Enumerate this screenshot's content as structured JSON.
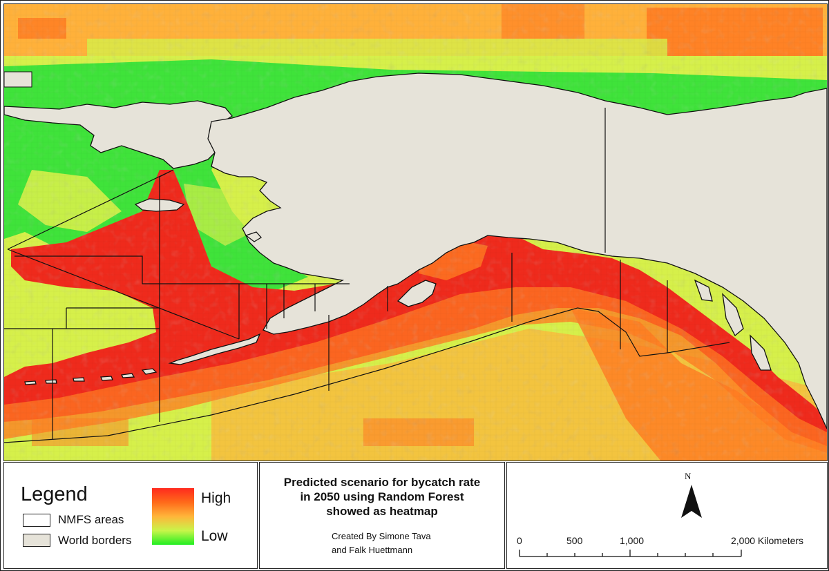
{
  "legend": {
    "title": "Legend",
    "items": [
      {
        "label": "NMFS areas",
        "color": "#ffffff"
      },
      {
        "label": "World borders",
        "color": "#e6e3d9"
      }
    ],
    "ramp": {
      "high_label": "High",
      "low_label": "Low",
      "colors": [
        "#ff2a1e",
        "#ff6a1a",
        "#ffb53a",
        "#c8f54a",
        "#22ee22"
      ]
    }
  },
  "title_block": {
    "title": "Predicted scenario for bycatch rate\nin 2050 using Random Forest\nshowed as heatmap",
    "credit": "Created By Simone Tava\nand Falk Huettmann"
  },
  "north_arrow": {
    "label": "N",
    "icon": "north-arrow-icon"
  },
  "scale_bar": {
    "labels": [
      "0",
      "500",
      "1,000",
      "2,000 Kilometers"
    ],
    "unit": "Kilometers"
  },
  "map_colors": {
    "land": "#e6e3d9",
    "high": "#ef2a1c",
    "mid_high": "#ff7a22",
    "mid": "#ffb13a",
    "mid_low": "#d6f04a",
    "low": "#3fe33a"
  }
}
